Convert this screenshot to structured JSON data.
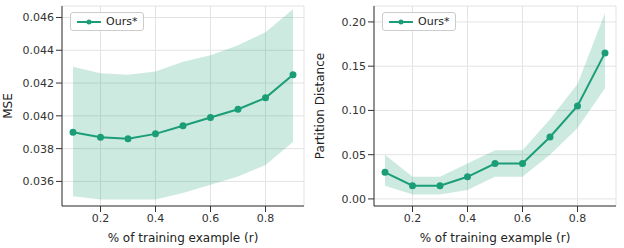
{
  "chart_data": [
    {
      "type": "line",
      "x_label": "% of training example (r)",
      "y_label": "MSE",
      "x": [
        0.1,
        0.2,
        0.3,
        0.4,
        0.5,
        0.6,
        0.7,
        0.8,
        0.9
      ],
      "xlim": [
        0.06,
        0.94
      ],
      "xticks": [
        0.2,
        0.4,
        0.6,
        0.8
      ],
      "ylim": [
        0.0345,
        0.0467
      ],
      "yticks": [
        0.036,
        0.038,
        {
          "value": 0.04,
          "label": "0.040"
        },
        0.042,
        0.044,
        0.046
      ],
      "grid": true,
      "legend": "upper left",
      "series": [
        {
          "name": "Ours*",
          "color": "#1b9e77",
          "marker": "o",
          "line_style": "solid",
          "values": [
            0.039,
            0.0387,
            0.0386,
            0.0389,
            0.0394,
            0.0399,
            0.0404,
            0.0411,
            0.0425
          ],
          "lower": [
            0.0351,
            0.0349,
            0.0349,
            0.0349,
            0.0353,
            0.0358,
            0.0363,
            0.037,
            0.0384
          ],
          "upper": [
            0.043,
            0.0426,
            0.0425,
            0.0427,
            0.0433,
            0.0437,
            0.0443,
            0.0451,
            0.0465
          ]
        }
      ]
    },
    {
      "type": "line",
      "x_label": "% of training example (r)",
      "y_label": "Partition Distance",
      "x": [
        0.1,
        0.2,
        0.3,
        0.4,
        0.5,
        0.6,
        0.7,
        0.8,
        0.9
      ],
      "xlim": [
        0.06,
        0.94
      ],
      "xticks": [
        0.2,
        0.4,
        0.6,
        0.8
      ],
      "ylim": [
        -0.008,
        0.218
      ],
      "yticks": [
        {
          "value": 0,
          "label": "0.00"
        },
        {
          "value": 0.05,
          "label": "0.05"
        },
        {
          "value": 0.1,
          "label": "0.10"
        },
        {
          "value": 0.15,
          "label": "0.15"
        },
        {
          "value": 0.2,
          "label": "0.20"
        }
      ],
      "grid": true,
      "legend": "upper left",
      "series": [
        {
          "name": "Ours*",
          "color": "#1b9e77",
          "marker": "o",
          "line_style": "solid",
          "values": [
            0.03,
            0.015,
            0.015,
            0.025,
            0.04,
            0.04,
            0.07,
            0.105,
            0.165
          ],
          "lower": [
            0.015,
            0.005,
            0.005,
            0.01,
            0.025,
            0.025,
            0.05,
            0.08,
            0.125
          ],
          "upper": [
            0.05,
            0.025,
            0.025,
            0.04,
            0.055,
            0.055,
            0.09,
            0.13,
            0.21
          ]
        }
      ]
    }
  ]
}
